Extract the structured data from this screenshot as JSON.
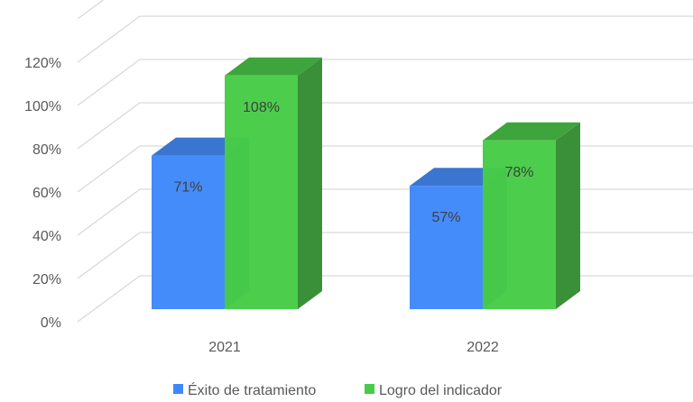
{
  "chart_data": {
    "type": "bar",
    "style": "3d-clustered-column",
    "title": "",
    "xlabel": "",
    "ylabel": "",
    "categories": [
      "2021",
      "2022"
    ],
    "series": [
      {
        "name": "Éxito de tratamiento",
        "values": [
          71,
          57
        ],
        "labels": [
          "71%",
          "57%"
        ],
        "color": "#3f88fb",
        "top_color": "#3a75d0",
        "side_color": "#3a6fc4"
      },
      {
        "name": "Logro del indicador",
        "values": [
          108,
          78
        ],
        "labels": [
          "108%",
          "78%"
        ],
        "color": "#46cc46",
        "top_color": "#3ea53c",
        "side_color": "#3a9039"
      }
    ],
    "yticks": [
      "0%",
      "20%",
      "40%",
      "60%",
      "80%",
      "100%",
      "120%"
    ],
    "ylim": [
      0,
      140
    ],
    "grid": true,
    "legend": "bottom"
  }
}
